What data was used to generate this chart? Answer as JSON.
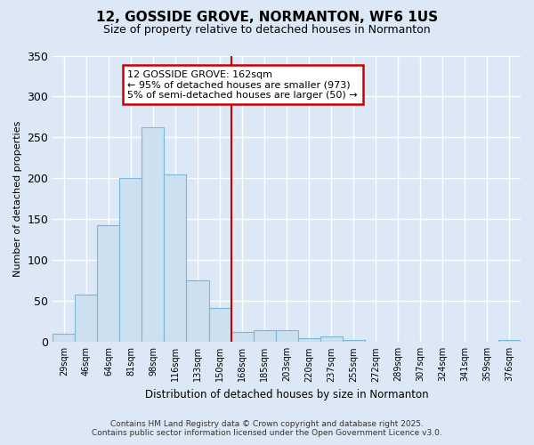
{
  "title": "12, GOSSIDE GROVE, NORMANTON, WF6 1US",
  "subtitle": "Size of property relative to detached houses in Normanton",
  "xlabel": "Distribution of detached houses by size in Normanton",
  "ylabel": "Number of detached properties",
  "bin_labels": [
    "29sqm",
    "46sqm",
    "64sqm",
    "81sqm",
    "98sqm",
    "116sqm",
    "133sqm",
    "150sqm",
    "168sqm",
    "185sqm",
    "203sqm",
    "220sqm",
    "237sqm",
    "255sqm",
    "272sqm",
    "289sqm",
    "307sqm",
    "324sqm",
    "341sqm",
    "359sqm",
    "376sqm"
  ],
  "bar_heights": [
    10,
    58,
    143,
    200,
    262,
    205,
    75,
    42,
    12,
    14,
    14,
    5,
    7,
    3,
    0,
    0,
    0,
    0,
    0,
    0,
    2
  ],
  "bar_color": "#cce0f0",
  "bar_edge_color": "#7ab8d8",
  "vline_x": 8.0,
  "vline_color": "#cc0000",
  "annotation_title": "12 GOSSIDE GROVE: 162sqm",
  "annotation_line1": "← 95% of detached houses are smaller (973)",
  "annotation_line2": "5% of semi-detached houses are larger (50) →",
  "annotation_box_color": "#ffffff",
  "annotation_box_edge": "#cc0000",
  "ylim": [
    0,
    350
  ],
  "yticks": [
    0,
    50,
    100,
    150,
    200,
    250,
    300,
    350
  ],
  "footer1": "Contains HM Land Registry data © Crown copyright and database right 2025.",
  "footer2": "Contains public sector information licensed under the Open Government Licence v3.0.",
  "bg_color": "#dce8f5",
  "grid_color": "#ffffff",
  "plot_bg_color": "#dce8f5"
}
